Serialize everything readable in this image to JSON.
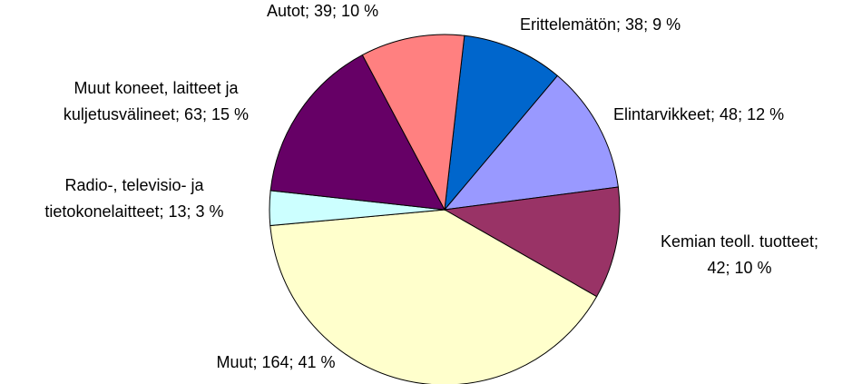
{
  "chart_data": {
    "type": "pie",
    "values": [
      38,
      48,
      42,
      164,
      13,
      63,
      39
    ],
    "value_labels": [
      [
        "Erittelemätön; 38; 9 %"
      ],
      [
        "Elintarvikkeet; 48; 12 %"
      ],
      [
        "Kemian teoll. tuotteet;",
        "42; 10 %"
      ],
      [
        "Muut; 164; 41 %"
      ],
      [
        "Radio-, televisio- ja",
        "tietokonelaitteet; 13; 3 %"
      ],
      [
        "Muut koneet, laitteet ja",
        "kuljetusvälineet; 63; 15 %"
      ],
      [
        "Autot; 39; 10 %"
      ]
    ],
    "colors": [
      "#0066cc",
      "#9999ff",
      "#993366",
      "#ffffcc",
      "#ccffff",
      "#660066",
      "#ff8080"
    ]
  }
}
